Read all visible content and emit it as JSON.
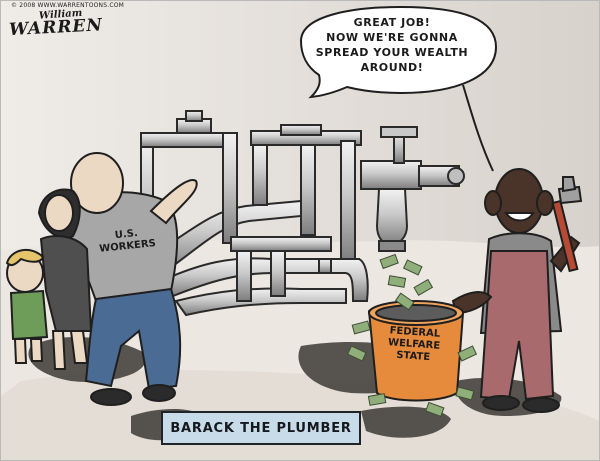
{
  "cartoon": {
    "credit": "© 2008 WWW.WARRENTOONS.COM",
    "signature_first": "William",
    "signature_last": "WARREN",
    "speech_lines": [
      "GREAT JOB!",
      "NOW WE'RE GONNA",
      "SPREAD YOUR WEALTH",
      "AROUND!"
    ],
    "shirt_lines": [
      "U.S.",
      "WORKERS"
    ],
    "bucket_lines": [
      "FEDERAL",
      "WELFARE",
      "STATE"
    ],
    "caption": "BARACK THE PLUMBER"
  },
  "icons": [
    "faucet-icon",
    "pipe-wrench-icon",
    "money-icon"
  ],
  "colors": {
    "background": "#f3f0ec",
    "caption_box": "#c7dbe8",
    "shirt": "#a7a7a7",
    "jeans": "#4a6b93",
    "overalls": "#a86a6c",
    "bucket": "#e68b3c",
    "money": "#8fae7a"
  }
}
